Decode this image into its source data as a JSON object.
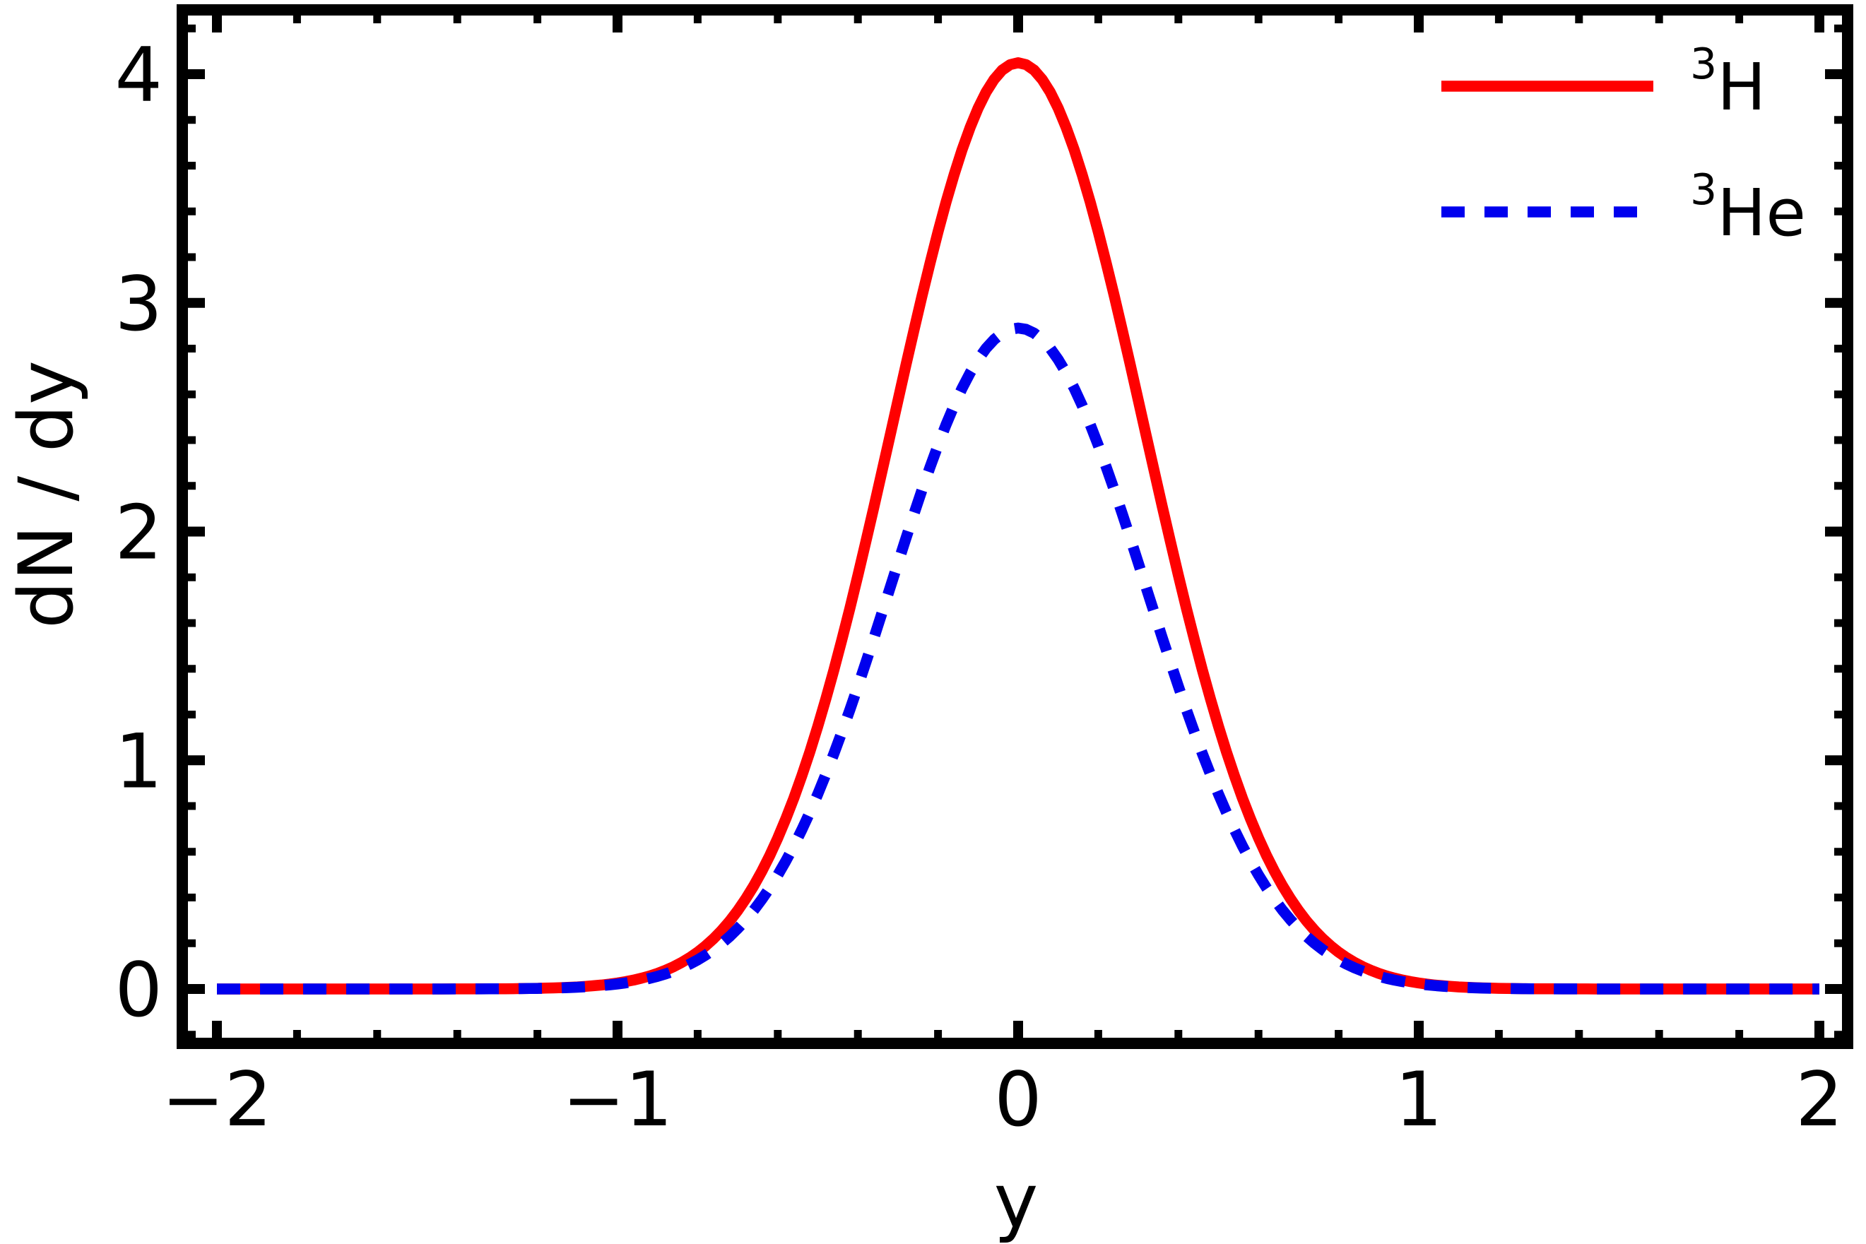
{
  "chart_data": {
    "type": "line",
    "title": "",
    "xlabel": "y",
    "ylabel": "dN / dy",
    "xlim": [
      -2.08,
      2.08
    ],
    "ylim": [
      -0.24,
      4.28
    ],
    "x_major_ticks": [
      -2,
      -1,
      0,
      1,
      2
    ],
    "x_tick_labels": [
      "−2",
      "−1",
      "0",
      "1",
      "2"
    ],
    "y_major_ticks": [
      0,
      1,
      2,
      3,
      4
    ],
    "y_tick_labels": [
      "0",
      "1",
      "2",
      "3",
      "4"
    ],
    "minor_tick_step": 0.2,
    "grid": false,
    "frame_color": "#000000",
    "background_color": "#ffffff",
    "legend_position": "upper right",
    "x": [
      -2.0,
      -1.9,
      -1.8,
      -1.7,
      -1.6,
      -1.5,
      -1.4,
      -1.3,
      -1.2,
      -1.1,
      -1.0,
      -0.9,
      -0.8,
      -0.7,
      -0.6,
      -0.5,
      -0.4,
      -0.3,
      -0.2,
      -0.1,
      0.0,
      0.1,
      0.2,
      0.3,
      0.4,
      0.5,
      0.6,
      0.7,
      0.8,
      0.9,
      1.0,
      1.1,
      1.2,
      1.3,
      1.4,
      1.5,
      1.6,
      1.7,
      1.8,
      1.9,
      2.0
    ],
    "series": [
      {
        "name": "3H",
        "label": "³H",
        "label_sup": "3",
        "label_base": "H",
        "color": "#ff0000",
        "style": "solid",
        "line_width": 15.5,
        "peak_value": 4.05,
        "peak_center": 0.0,
        "gaussian_sigma": 0.315,
        "values": [
          0.0,
          0.0,
          0.0,
          0.0,
          0.0,
          0.0,
          0.0,
          0.001,
          0.003,
          0.009,
          0.026,
          0.068,
          0.161,
          0.343,
          0.66,
          1.149,
          1.808,
          2.573,
          3.311,
          3.851,
          4.05,
          3.851,
          3.311,
          2.573,
          1.808,
          1.149,
          0.66,
          0.343,
          0.161,
          0.068,
          0.026,
          0.009,
          0.003,
          0.001,
          0.0,
          0.0,
          0.0,
          0.0,
          0.0,
          0.0,
          0.0
        ]
      },
      {
        "name": "3He",
        "label": "³He",
        "label_sup": "3",
        "label_base": "He",
        "color": "#0000ee",
        "style": "dashed",
        "line_width": 15.5,
        "peak_value": 2.89,
        "peak_center": 0.0,
        "gaussian_sigma": 0.32,
        "values": [
          0.0,
          0.0,
          0.0,
          0.0,
          0.0,
          0.0,
          0.0,
          0.001,
          0.003,
          0.008,
          0.022,
          0.055,
          0.127,
          0.264,
          0.498,
          0.853,
          1.323,
          1.862,
          2.377,
          2.752,
          2.89,
          2.752,
          2.377,
          1.862,
          1.323,
          0.853,
          0.498,
          0.264,
          0.127,
          0.055,
          0.022,
          0.008,
          0.003,
          0.001,
          0.0,
          0.0,
          0.0,
          0.0,
          0.0,
          0.0,
          0.0
        ]
      }
    ]
  }
}
